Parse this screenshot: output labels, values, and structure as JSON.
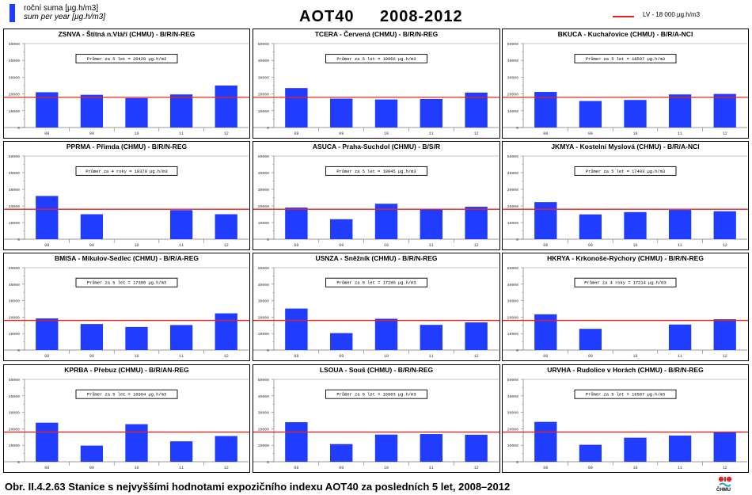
{
  "header": {
    "legend_line1": "roční suma [µg.h/m3]",
    "legend_line2": "sum per year [µg.h/m3]",
    "title": "AOT40",
    "years": "2008-2012",
    "lv_label": "LV - 18 000 µg.h/m3"
  },
  "caption": "Obr. II.4.2.63  Stanice s nejvyššími hodnotami expozičního indexu AOT40 za posledních 5 let, 2008–2012",
  "logo_text": "ČHMÚ",
  "colors": {
    "bar": "#1f3cff",
    "limit": "#e8231e"
  },
  "chart_data": [
    {
      "type": "bar",
      "title": "ZSNVA - Štítná n.Vláří (CHMU) - B/R/N-REG",
      "note": "Průmer za 5 let = 20428 µg.h/m3",
      "categories": [
        "08",
        "09",
        "10",
        "11",
        "12"
      ],
      "values": [
        21000,
        19500,
        17500,
        19700,
        25000
      ],
      "ylim": [
        0,
        50000
      ],
      "yticks": [
        "0",
        "10000",
        "20000",
        "30000",
        "40000",
        "50000"
      ],
      "limit": 18000
    },
    {
      "type": "bar",
      "title": "TCERA - Červená (CHMU) - B/R/N-REG",
      "note": "Průmer za 5 let = 18966 µg.h/m3",
      "categories": [
        "08",
        "09",
        "10",
        "11",
        "12"
      ],
      "values": [
        23500,
        17200,
        16700,
        17000,
        20800
      ],
      "ylim": [
        0,
        50000
      ],
      "yticks": [
        "0",
        "10000",
        "20000",
        "30000",
        "40000",
        "50000"
      ],
      "limit": 18000
    },
    {
      "type": "bar",
      "title": "BKUCA - Kuchařovice (CHMU) - B/R/A-NCI",
      "note": "Průmer za 5 let = 18597 µg.h/m3",
      "categories": [
        "08",
        "09",
        "10",
        "11",
        "12"
      ],
      "values": [
        21200,
        15800,
        16400,
        19700,
        20000
      ],
      "ylim": [
        0,
        50000
      ],
      "yticks": [
        "0",
        "10000",
        "20000",
        "30000",
        "40000",
        "50000"
      ],
      "limit": 18000
    },
    {
      "type": "bar",
      "title": "PPRMA - Přimda (CHMU) - B/R/N-REG",
      "note": "Průmer za 4 roky = 18379 µg.h/m3",
      "categories": [
        "08",
        "09",
        "10",
        "11",
        "12"
      ],
      "values": [
        26000,
        15000,
        null,
        17500,
        15000
      ],
      "ylim": [
        0,
        50000
      ],
      "yticks": [
        "0",
        "10000",
        "20000",
        "30000",
        "40000",
        "50000"
      ],
      "limit": 18000
    },
    {
      "type": "bar",
      "title": "ASUCA - Praha-Suchdol (CHMU) - B/S/R",
      "note": "Průmer za 5 let = 18045 µg.h/m3",
      "categories": [
        "08",
        "09",
        "10",
        "11",
        "12"
      ],
      "values": [
        19000,
        12000,
        21300,
        18200,
        19500
      ],
      "ylim": [
        0,
        50000
      ],
      "yticks": [
        "0",
        "10000",
        "20000",
        "30000",
        "40000",
        "50000"
      ],
      "limit": 18000
    },
    {
      "type": "bar",
      "title": "JKMYA - Kostelní Myslová (CHMU) - B/R/A-NCI",
      "note": "Průmer za 5 let = 17493 µg.h/m3",
      "categories": [
        "08",
        "09",
        "10",
        "11",
        "12"
      ],
      "values": [
        22300,
        14900,
        16300,
        17600,
        16800
      ],
      "ylim": [
        0,
        50000
      ],
      "yticks": [
        "0",
        "10000",
        "20000",
        "30000",
        "40000",
        "50000"
      ],
      "limit": 18000
    },
    {
      "type": "bar",
      "title": "BMISA - Mikulov-Sedlec (CHMU) - B/R/A-REG",
      "note": "Průmer za 5 let = 17300 µg.h/m3",
      "categories": [
        "08",
        "09",
        "10",
        "11",
        "12"
      ],
      "values": [
        19200,
        15800,
        14000,
        15200,
        22300
      ],
      "ylim": [
        0,
        50000
      ],
      "yticks": [
        "0",
        "10000",
        "20000",
        "30000",
        "40000",
        "50000"
      ],
      "limit": 18000
    },
    {
      "type": "bar",
      "title": "USNZA - Sněžník (CHMU) - B/R/N-REG",
      "note": "Průmer za 5 let = 17280 µg.h/m3",
      "categories": [
        "08",
        "09",
        "10",
        "11",
        "12"
      ],
      "values": [
        25200,
        10300,
        19000,
        15300,
        16800
      ],
      "ylim": [
        0,
        50000
      ],
      "yticks": [
        "0",
        "10000",
        "20000",
        "30000",
        "40000",
        "50000"
      ],
      "limit": 18000
    },
    {
      "type": "bar",
      "title": "HKRYA - Krkonoše-Rýchory (CHMU) - B/R/N-REG",
      "note": "Průmer za 4 roky = 17214 µg.h/m3",
      "categories": [
        "08",
        "09",
        "10",
        "11",
        "12"
      ],
      "values": [
        21700,
        12900,
        null,
        15500,
        18700
      ],
      "ylim": [
        0,
        50000
      ],
      "yticks": [
        "0",
        "10000",
        "20000",
        "30000",
        "40000",
        "50000"
      ],
      "limit": 18000
    },
    {
      "type": "bar",
      "title": "KPRBA - Přebuz (CHMU) - B/R/AN-REG",
      "note": "Průmer za 5 let = 16904 µg.h/m3",
      "categories": [
        "08",
        "09",
        "10",
        "11",
        "12"
      ],
      "values": [
        23700,
        9800,
        22800,
        12400,
        15600
      ],
      "ylim": [
        0,
        50000
      ],
      "yticks": [
        "0",
        "10000",
        "20000",
        "30000",
        "40000",
        "50000"
      ],
      "limit": 18000
    },
    {
      "type": "bar",
      "title": "LSOUA - Souš (CHMU) - B/R/N-REG",
      "note": "Průmer za 5 let = 16903 µg.h/m3",
      "categories": [
        "08",
        "09",
        "10",
        "11",
        "12"
      ],
      "values": [
        24000,
        10700,
        16500,
        16800,
        16400
      ],
      "ylim": [
        0,
        50000
      ],
      "yticks": [
        "0",
        "10000",
        "20000",
        "30000",
        "40000",
        "50000"
      ],
      "limit": 18000
    },
    {
      "type": "bar",
      "title": "URVHA - Rudolice v Horách (CHMU) - B/R/N-REG",
      "note": "Průmer za 5 let = 16587 µg.h/m3",
      "categories": [
        "08",
        "09",
        "10",
        "11",
        "12"
      ],
      "values": [
        24200,
        10300,
        14600,
        15900,
        18200
      ],
      "ylim": [
        0,
        50000
      ],
      "yticks": [
        "0",
        "10000",
        "20000",
        "30000",
        "40000",
        "50000"
      ],
      "limit": 18000
    }
  ]
}
